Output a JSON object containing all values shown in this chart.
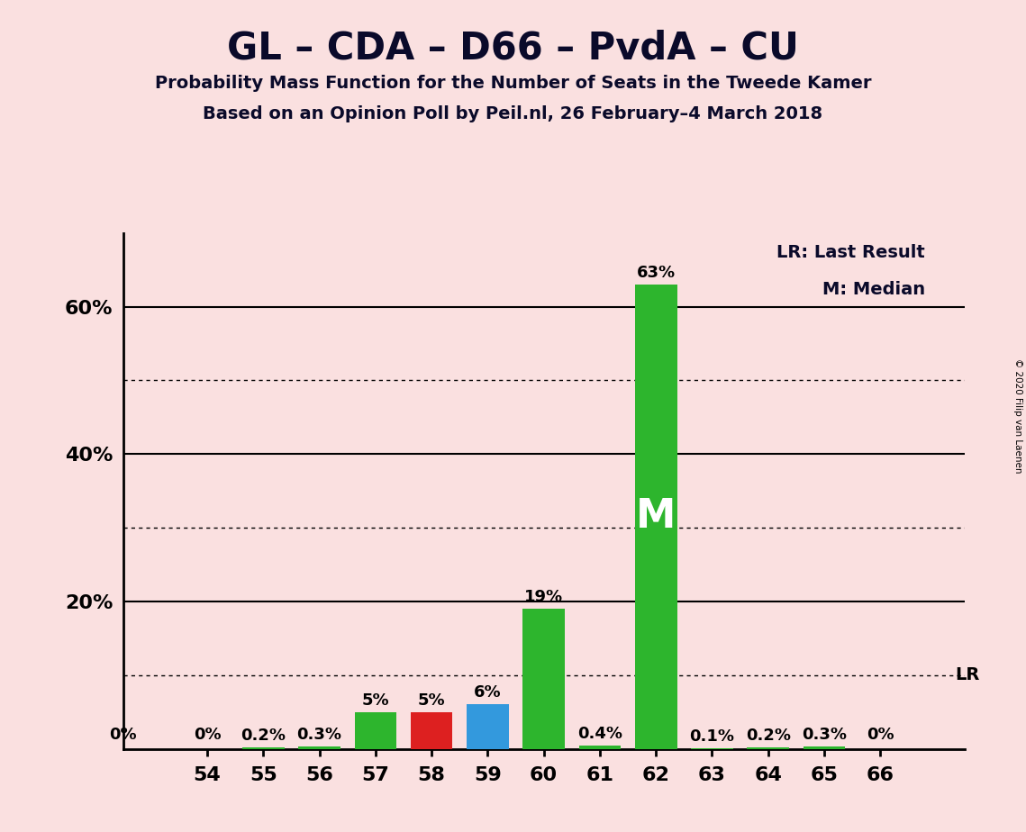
{
  "title": "GL – CDA – D66 – PvdA – CU",
  "subtitle1": "Probability Mass Function for the Number of Seats in the Tweede Kamer",
  "subtitle2": "Based on an Opinion Poll by Peil.nl, 26 February–4 March 2018",
  "copyright": "© 2020 Filip van Laenen",
  "background_color": "#fae0e0",
  "seats": [
    54,
    55,
    56,
    57,
    58,
    59,
    60,
    61,
    62,
    63,
    64,
    65,
    66
  ],
  "values": [
    0.001,
    0.2,
    0.3,
    5.0,
    5.0,
    6.0,
    19.0,
    0.4,
    63.0,
    0.1,
    0.2,
    0.3,
    0.001
  ],
  "labels": [
    "0%",
    "0.2%",
    "0.3%",
    "5%",
    "5%",
    "6%",
    "19%",
    "0.4%",
    "63%",
    "0.1%",
    "0.2%",
    "0.3%",
    "0%"
  ],
  "bar_colors": [
    "#2db52d",
    "#2db52d",
    "#2db52d",
    "#2db52d",
    "#dd2020",
    "#3399dd",
    "#2db52d",
    "#2db52d",
    "#2db52d",
    "#2db52d",
    "#2db52d",
    "#2db52d",
    "#2db52d"
  ],
  "median_seat": 62,
  "lr_line_value": 10.0,
  "ylim_max": 70,
  "major_yticks": [
    20,
    40,
    60
  ],
  "major_ytick_labels": [
    "20%",
    "40%",
    "60%"
  ],
  "dotted_yticks": [
    10,
    30,
    50
  ],
  "zero_ytick": 0,
  "legend_lr": "LR: Last Result",
  "legend_m": "M: Median",
  "lr_label": "LR",
  "m_label": "M"
}
